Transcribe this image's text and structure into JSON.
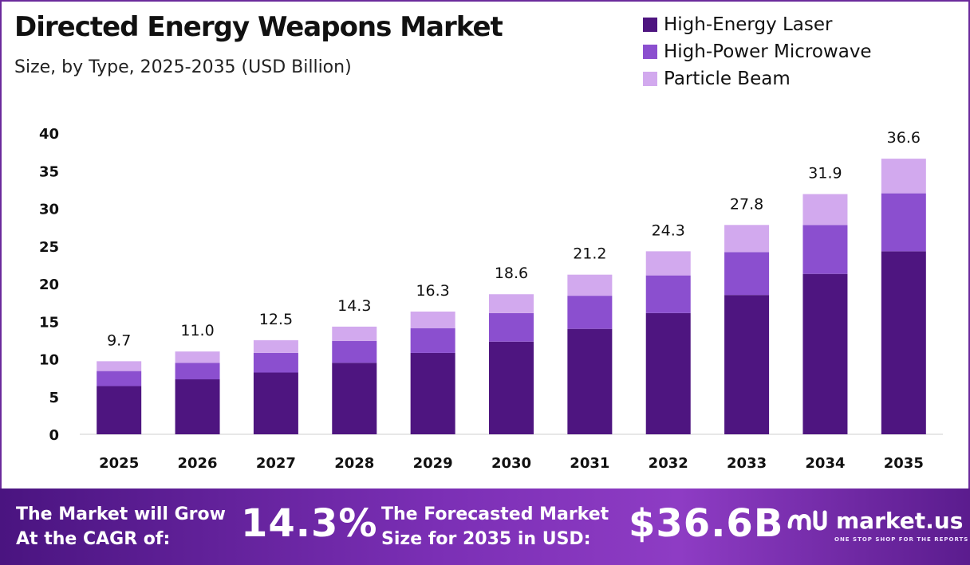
{
  "header": {
    "title": "Directed Energy Weapons Market",
    "subtitle": "Size, by Type, 2025-2035 (USD Billion)"
  },
  "legend": [
    {
      "label": "High-Energy Laser",
      "color": "#4e1580"
    },
    {
      "label": "High-Power Microwave",
      "color": "#8b4fcf"
    },
    {
      "label": "Particle Beam",
      "color": "#d2a9ee"
    }
  ],
  "chart_data": {
    "type": "bar",
    "stacked": true,
    "title": "Directed Energy Weapons Market",
    "subtitle": "Size, by Type, 2025-2035 (USD Billion)",
    "categories": [
      "2025",
      "2026",
      "2027",
      "2028",
      "2029",
      "2030",
      "2031",
      "2032",
      "2033",
      "2034",
      "2035"
    ],
    "series": [
      {
        "name": "High-Energy Laser",
        "color": "#4e1580",
        "values": [
          6.4,
          7.3,
          8.2,
          9.5,
          10.8,
          12.3,
          14.0,
          16.1,
          18.5,
          21.3,
          24.3
        ]
      },
      {
        "name": "High-Power Microwave",
        "color": "#8b4fcf",
        "values": [
          2.0,
          2.2,
          2.6,
          2.9,
          3.3,
          3.8,
          4.4,
          5.0,
          5.7,
          6.5,
          7.7
        ]
      },
      {
        "name": "Particle Beam",
        "color": "#d2a9ee",
        "values": [
          1.3,
          1.5,
          1.7,
          1.9,
          2.2,
          2.5,
          2.8,
          3.2,
          3.6,
          4.1,
          4.6
        ]
      }
    ],
    "totals": [
      "9.7",
      "11.0",
      "12.5",
      "14.3",
      "16.3",
      "18.6",
      "21.2",
      "24.3",
      "27.8",
      "31.9",
      "36.6"
    ],
    "yticks": [
      "0",
      "5",
      "10",
      "15",
      "20",
      "25",
      "30",
      "35",
      "40"
    ],
    "ylim": [
      0,
      40
    ],
    "grid": false,
    "legend_position": "top-right"
  },
  "footer": {
    "cagr_label_line1": "The Market will Grow",
    "cagr_label_line2": "At the CAGR of:",
    "cagr_value": "14.3%",
    "forecast_label_line1": "The Forecasted Market",
    "forecast_label_line2": "Size for 2035 in USD:",
    "forecast_value": "$36.6B",
    "brand_name": "market.us",
    "brand_tagline": "ONE STOP SHOP FOR THE REPORTS"
  }
}
